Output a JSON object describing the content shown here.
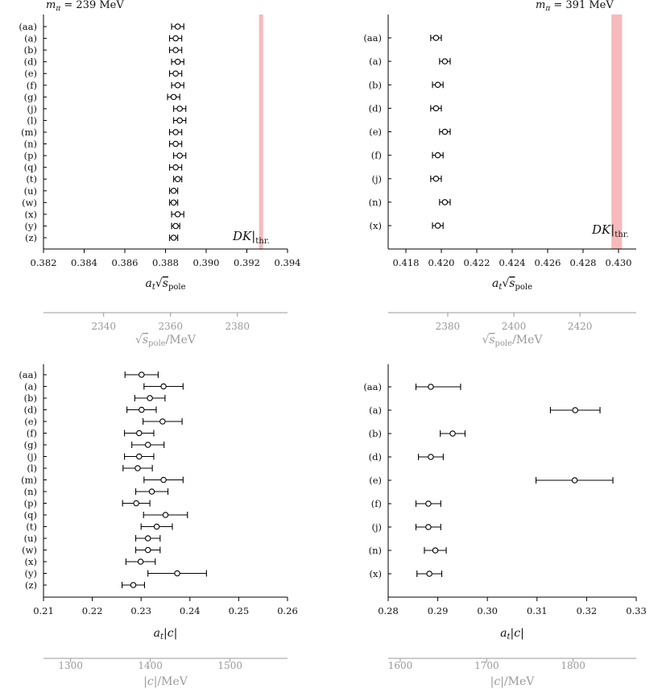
{
  "chart_data": [
    {
      "id": "tl",
      "type": "scatter",
      "title": "m_π = 239 MeV",
      "title_parts": {
        "sym": "m",
        "sub": "π",
        "rest": " = 239 MeV"
      },
      "xlabel_parts": {
        "a": "a",
        "t": "t",
        "s": "s",
        "pole": "pole"
      },
      "xlim": [
        0.382,
        0.394
      ],
      "xticks": [
        "0.382",
        "0.384",
        "0.386",
        "0.388",
        "0.390",
        "0.392",
        "0.394"
      ],
      "categories": [
        "(aa)",
        "(a)",
        "(b)",
        "(d)",
        "(e)",
        "(f)",
        "(g)",
        "(j)",
        "(l)",
        "(m)",
        "(n)",
        "(p)",
        "(q)",
        "(t)",
        "(u)",
        "(w)",
        "(x)",
        "(y)",
        "(z)"
      ],
      "values": [
        0.3886,
        0.3885,
        0.3885,
        0.3886,
        0.3885,
        0.3886,
        0.3884,
        0.3887,
        0.3887,
        0.3885,
        0.3885,
        0.3887,
        0.3885,
        0.3886,
        0.3884,
        0.3884,
        0.3886,
        0.3885,
        0.3884
      ],
      "err": [
        0.0003,
        0.0003,
        0.0003,
        0.0003,
        0.0003,
        0.0003,
        0.0003,
        0.0003,
        0.0003,
        0.0003,
        0.0003,
        0.0003,
        0.0003,
        0.0002,
        0.0002,
        0.0002,
        0.0003,
        0.0002,
        0.0002
      ],
      "band": [
        0.3926,
        0.3928
      ],
      "band_color": "#f8b9bb",
      "annotation": {
        "a": "DK",
        "b": "thr."
      },
      "secondary_axis": {
        "xlim": [
          2322,
          2395
        ],
        "ticks": [
          "2340",
          "2360",
          "2380"
        ],
        "label_parts": {
          "s": "s",
          "pole": "pole",
          "unit": "/MeV"
        }
      }
    },
    {
      "id": "tr",
      "type": "scatter",
      "title": "m_π = 391 MeV",
      "title_parts": {
        "sym": "m",
        "sub": "π",
        "rest": " = 391 MeV"
      },
      "xlabel_parts": {
        "a": "a",
        "t": "t",
        "s": "s",
        "pole": "pole"
      },
      "xlim": [
        0.417,
        0.431
      ],
      "xticks": [
        "0.418",
        "0.420",
        "0.422",
        "0.424",
        "0.426",
        "0.428",
        "0.430"
      ],
      "categories": [
        "(aa)",
        "(a)",
        "(b)",
        "(d)",
        "(e)",
        "(f)",
        "(j)",
        "(n)",
        "(x)"
      ],
      "values": [
        0.4197,
        0.4202,
        0.4198,
        0.4197,
        0.4202,
        0.4198,
        0.4197,
        0.4202,
        0.4198
      ],
      "err": [
        0.0003,
        0.0003,
        0.0003,
        0.0003,
        0.0003,
        0.0003,
        0.0003,
        0.0003,
        0.0003
      ],
      "band": [
        0.4296,
        0.4302
      ],
      "band_color": "#f8b9bb",
      "annotation": {
        "a": "DK",
        "b": "thr."
      },
      "secondary_axis": {
        "xlim": [
          2362,
          2437
        ],
        "ticks": [
          "2380",
          "2400",
          "2420"
        ],
        "label_parts": {
          "s": "s",
          "pole": "pole",
          "unit": "/MeV"
        }
      }
    },
    {
      "id": "bl",
      "type": "scatter",
      "xlabel_parts": {
        "a": "a",
        "t": "t",
        "c": "c"
      },
      "xlim": [
        0.21,
        0.26
      ],
      "xticks": [
        "0.21",
        "0.22",
        "0.23",
        "0.24",
        "0.25",
        "0.26"
      ],
      "categories": [
        "(aa)",
        "(a)",
        "(b)",
        "(d)",
        "(e)",
        "(f)",
        "(g)",
        "(j)",
        "(l)",
        "(m)",
        "(n)",
        "(p)",
        "(q)",
        "(t)",
        "(u)",
        "(w)",
        "(x)",
        "(y)",
        "(z)"
      ],
      "values": [
        0.2301,
        0.2346,
        0.2318,
        0.2301,
        0.2344,
        0.2296,
        0.2314,
        0.2296,
        0.2293,
        0.2346,
        0.2322,
        0.229,
        0.235,
        0.2332,
        0.2314,
        0.2314,
        0.2299,
        0.2374,
        0.2284
      ],
      "err": [
        0.0034,
        0.004,
        0.0031,
        0.003,
        0.004,
        0.003,
        0.0033,
        0.003,
        0.003,
        0.004,
        0.0033,
        0.0028,
        0.0045,
        0.0032,
        0.0025,
        0.0025,
        0.003,
        0.006,
        0.0023
      ],
      "secondary_axis": {
        "xlim": [
          1266,
          1572
        ],
        "ticks": [
          "1300",
          "1400",
          "1500"
        ],
        "label_parts": {
          "c": "c",
          "unit": "/MeV"
        }
      }
    },
    {
      "id": "br",
      "type": "scatter",
      "xlabel_parts": {
        "a": "a",
        "t": "t",
        "c": "c"
      },
      "xlim": [
        0.28,
        0.33
      ],
      "xticks": [
        "0.28",
        "0.29",
        "0.30",
        "0.31",
        "0.32",
        "0.33"
      ],
      "categories": [
        "(aa)",
        "(a)",
        "(b)",
        "(d)",
        "(e)",
        "(f)",
        "(j)",
        "(n)",
        "(x)"
      ],
      "values": [
        0.2886,
        0.3177,
        0.293,
        0.2886,
        0.3176,
        0.2881,
        0.2881,
        0.2895,
        0.2883
      ],
      "err": [
        [
          0.003,
          0.006
        ],
        [
          0.005,
          0.005
        ],
        [
          0.0025,
          0.0025
        ],
        [
          0.0025,
          0.0025
        ],
        [
          0.0078,
          0.0077
        ],
        [
          0.0025,
          0.0025
        ],
        [
          0.0025,
          0.0025
        ],
        [
          0.0022,
          0.0022
        ],
        [
          0.0025,
          0.0025
        ]
      ],
      "secondary_axis": {
        "xlim": [
          1586,
          1873
        ],
        "ticks": [
          "1600",
          "1700",
          "1800"
        ],
        "label_parts": {
          "c": "c",
          "unit": "/MeV"
        }
      }
    }
  ]
}
